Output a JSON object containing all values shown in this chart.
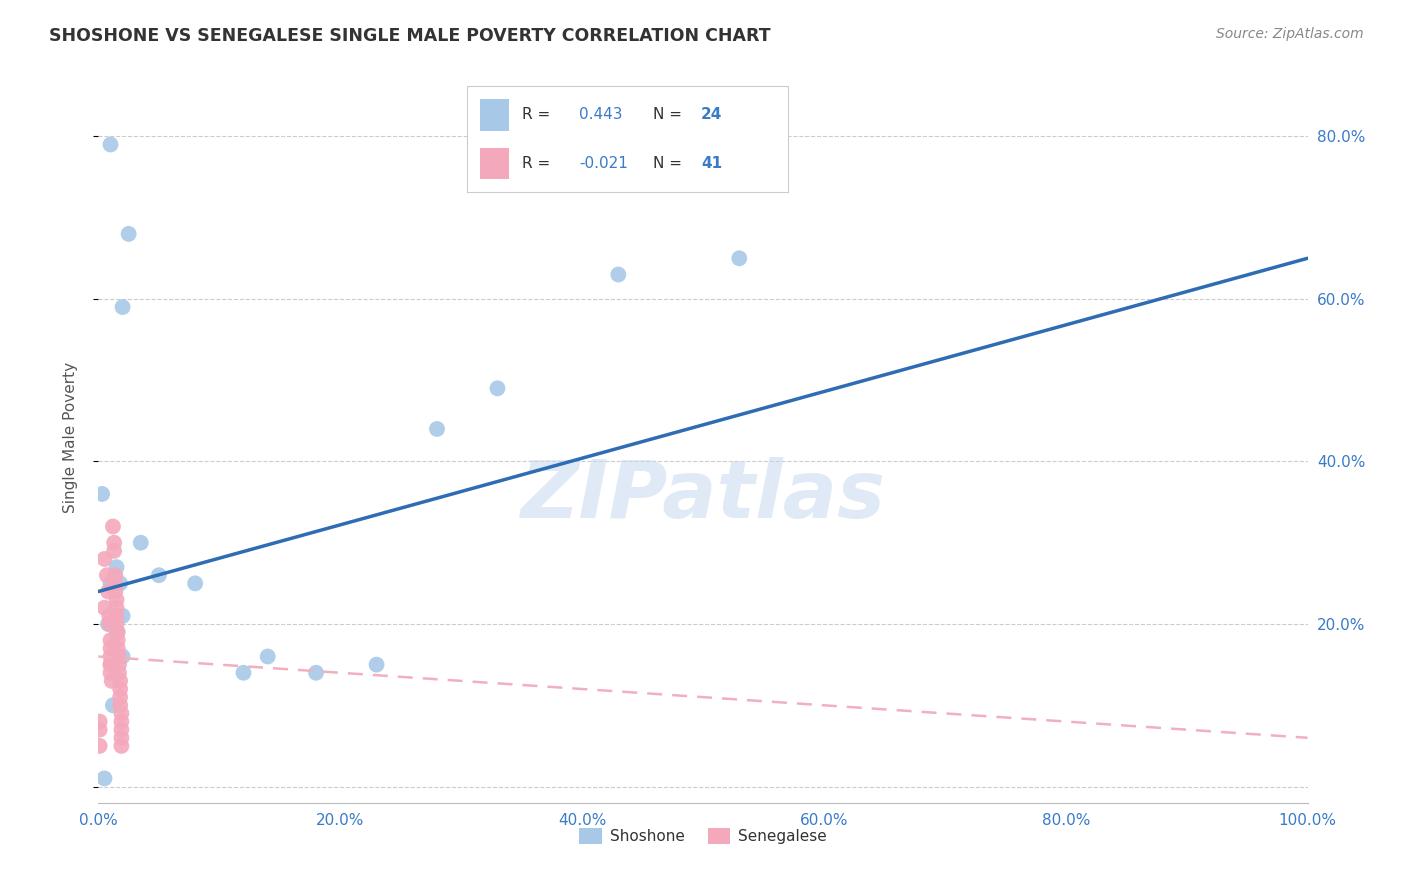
{
  "title": "SHOSHONE VS SENEGALESE SINGLE MALE POVERTY CORRELATION CHART",
  "source": "Source: ZipAtlas.com",
  "ylabel": "Single Male Poverty",
  "legend_blue_r": "R =  0.443",
  "legend_blue_n": "N = 24",
  "legend_pink_r": "R = -0.021",
  "legend_pink_n": "N =  41",
  "shoshone_color": "#a8c8e8",
  "senegalese_color": "#f4a8bc",
  "shoshone_line_color": "#2e6db4",
  "senegalese_line_color": "#f0b0c0",
  "background_color": "#ffffff",
  "watermark": "ZIPatlas",
  "shoshone_x": [
    1.0,
    2.5,
    2.0,
    0.3,
    3.5,
    1.5,
    1.0,
    8.0,
    5.0,
    2.0,
    0.8,
    1.5,
    1.8,
    2.0,
    14.0,
    12.0,
    18.0,
    23.0,
    33.0,
    28.0,
    43.0,
    53.0,
    1.2,
    0.5
  ],
  "shoshone_y": [
    79.0,
    68.0,
    59.0,
    36.0,
    30.0,
    27.0,
    25.0,
    25.0,
    26.0,
    21.0,
    20.0,
    19.0,
    25.0,
    16.0,
    16.0,
    14.0,
    14.0,
    15.0,
    49.0,
    44.0,
    63.0,
    65.0,
    10.0,
    1.0
  ],
  "senegalese_x": [
    0.1,
    0.1,
    0.1,
    0.5,
    0.5,
    0.7,
    0.8,
    0.9,
    0.9,
    1.0,
    1.0,
    1.0,
    1.0,
    1.0,
    1.0,
    1.1,
    1.2,
    1.3,
    1.3,
    1.4,
    1.4,
    1.4,
    1.5,
    1.5,
    1.5,
    1.5,
    1.6,
    1.6,
    1.6,
    1.7,
    1.7,
    1.7,
    1.8,
    1.8,
    1.8,
    1.8,
    1.9,
    1.9,
    1.9,
    1.9,
    1.9
  ],
  "senegalese_y": [
    8.0,
    7.0,
    5.0,
    28.0,
    22.0,
    26.0,
    24.0,
    21.0,
    20.0,
    18.0,
    17.0,
    16.0,
    15.0,
    15.0,
    14.0,
    13.0,
    32.0,
    30.0,
    29.0,
    26.0,
    25.0,
    24.0,
    23.0,
    22.0,
    21.0,
    20.0,
    19.0,
    18.0,
    17.0,
    16.0,
    15.0,
    14.0,
    13.0,
    12.0,
    11.0,
    10.0,
    9.0,
    8.0,
    7.0,
    5.0,
    6.0
  ],
  "xlim": [
    0.0,
    100.0
  ],
  "ylim": [
    -2.0,
    88.0
  ],
  "xticks": [
    0.0,
    20.0,
    40.0,
    60.0,
    80.0,
    100.0
  ],
  "xticklabels": [
    "0.0%",
    "20.0%",
    "40.0%",
    "60.0%",
    "80.0%",
    "100.0%"
  ],
  "yticks": [
    0.0,
    20.0,
    40.0,
    60.0,
    80.0
  ],
  "yticklabels": [
    "",
    "20.0%",
    "40.0%",
    "60.0%",
    "80.0%"
  ]
}
